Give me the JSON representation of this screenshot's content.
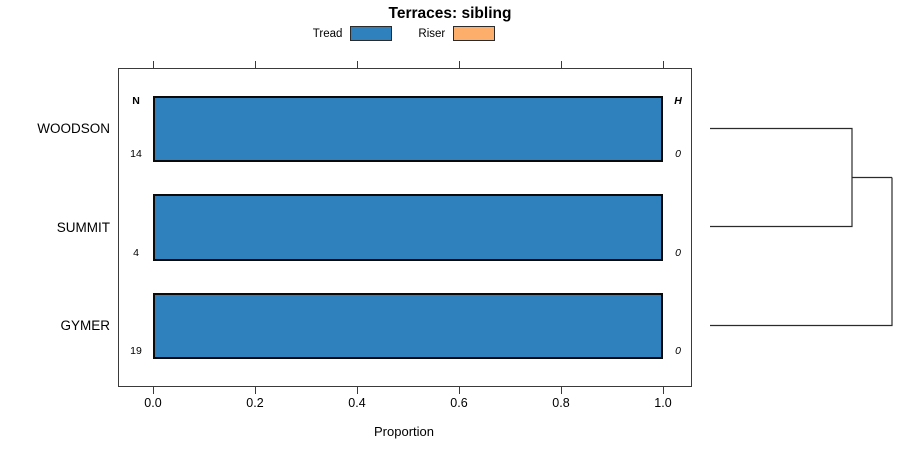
{
  "title": "Terraces: sibling",
  "legend": {
    "items": [
      {
        "label": "Tread",
        "color": "#2E81BD"
      },
      {
        "label": "Riser",
        "color": "#FDAE6B"
      }
    ]
  },
  "columns": {
    "n_header": "N",
    "h_header": "H"
  },
  "axis": {
    "xlabel": "Proportion",
    "tick_labels": [
      "0.0",
      "0.2",
      "0.4",
      "0.6",
      "0.8",
      "1.0"
    ],
    "tick_values": [
      0.0,
      0.2,
      0.4,
      0.6,
      0.8,
      1.0
    ]
  },
  "rows": [
    {
      "label": "WOODSON",
      "n": "14",
      "h": "0",
      "tread": 1.0,
      "riser": 0.0
    },
    {
      "label": "SUMMIT",
      "n": "4",
      "h": "0",
      "tread": 1.0,
      "riser": 0.0
    },
    {
      "label": "GYMER",
      "n": "19",
      "h": "0",
      "tread": 1.0,
      "riser": 0.0
    }
  ],
  "chart_data": {
    "type": "bar",
    "orientation": "horizontal",
    "stacked": true,
    "title": "Terraces: sibling",
    "categories": [
      "WOODSON",
      "SUMMIT",
      "GYMER"
    ],
    "series": [
      {
        "name": "Tread",
        "color": "#2E81BD",
        "values": [
          1.0,
          1.0,
          1.0
        ]
      },
      {
        "name": "Riser",
        "color": "#FDAE6B",
        "values": [
          0.0,
          0.0,
          0.0
        ]
      }
    ],
    "annotations": {
      "N": [
        14,
        4,
        19
      ],
      "H": [
        0,
        0,
        0
      ]
    },
    "xlabel": "Proportion",
    "xlim": [
      0,
      1
    ],
    "xticks": [
      0.0,
      0.2,
      0.4,
      0.6,
      0.8,
      1.0
    ],
    "legend_position": "top",
    "grid": false,
    "dendrogram": {
      "side": "right",
      "leaves": [
        "WOODSON",
        "SUMMIT",
        "GYMER"
      ],
      "merges": [
        {
          "join": [
            "WOODSON",
            "SUMMIT"
          ]
        },
        {
          "join": [
            "WOODSON+SUMMIT",
            "GYMER"
          ]
        }
      ]
    }
  }
}
